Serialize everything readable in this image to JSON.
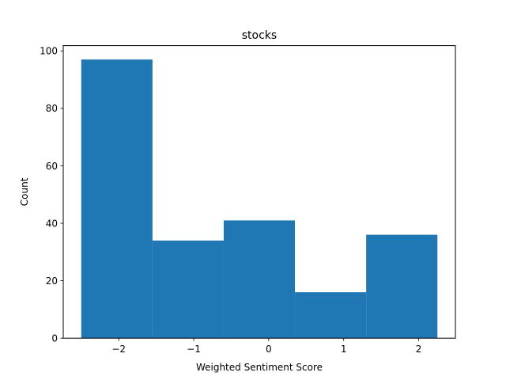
{
  "chart_data": {
    "type": "bar",
    "title": "stocks",
    "xlabel": "Weighted Sentiment Score",
    "ylabel": "Count",
    "bins": [
      {
        "start": -2.5,
        "end": -1.55,
        "value": 97
      },
      {
        "start": -1.55,
        "end": -0.6,
        "value": 34
      },
      {
        "start": -0.6,
        "end": 0.35,
        "value": 41
      },
      {
        "start": 0.35,
        "end": 1.3,
        "value": 16
      },
      {
        "start": 1.3,
        "end": 2.25,
        "value": 36
      }
    ],
    "xlim": [
      -2.74,
      2.49
    ],
    "ylim": [
      0,
      101.85
    ],
    "xticks": [
      -2,
      -1,
      0,
      1,
      2
    ],
    "xtick_labels": [
      "−2",
      "−1",
      "0",
      "1",
      "2"
    ],
    "yticks": [
      0,
      20,
      40,
      60,
      80,
      100
    ],
    "ytick_labels": [
      "0",
      "20",
      "40",
      "60",
      "80",
      "100"
    ],
    "grid": false,
    "bar_color": "#1f77b4"
  }
}
